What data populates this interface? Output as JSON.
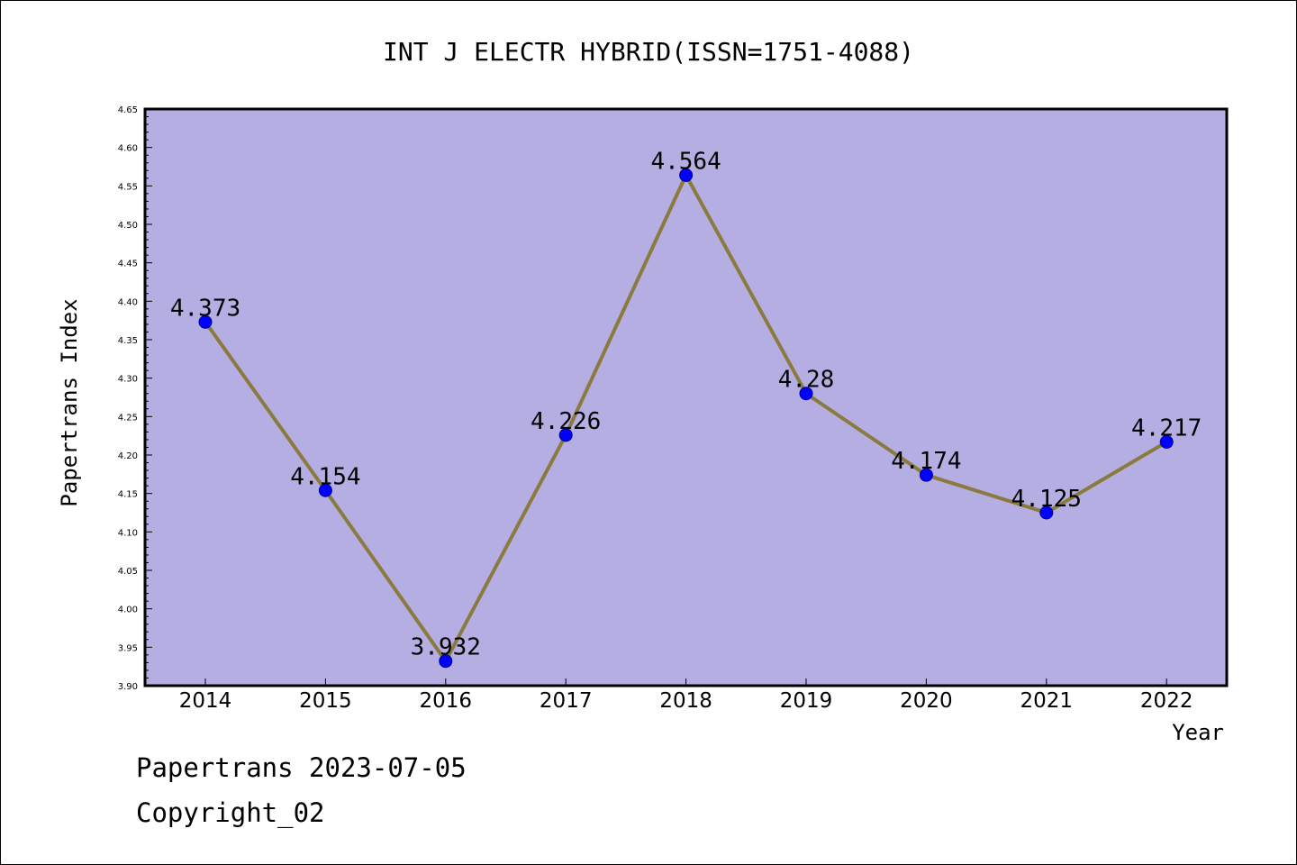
{
  "chart_data": {
    "type": "line",
    "title": "INT J ELECTR HYBRID(ISSN=1751-4088)",
    "xlabel": "Year",
    "ylabel": "Papertrans Index",
    "categories": [
      "2014",
      "2015",
      "2016",
      "2017",
      "2018",
      "2019",
      "2020",
      "2021",
      "2022"
    ],
    "series": [
      {
        "values": [
          4.373,
          4.154,
          3.932,
          4.226,
          4.564,
          4.28,
          4.174,
          4.125,
          4.217
        ],
        "labels": [
          "4.373",
          "4.154",
          "3.932",
          "4.226",
          "4.564",
          "4.28",
          "4.174",
          "4.125",
          "4.217"
        ]
      }
    ],
    "ylim": [
      3.9,
      4.65
    ],
    "yticks": [
      "3.90",
      "3.95",
      "4.00",
      "4.05",
      "4.10",
      "4.15",
      "4.20",
      "4.25",
      "4.30",
      "4.35",
      "4.40",
      "4.45",
      "4.50",
      "4.55",
      "4.60",
      "4.65"
    ],
    "grid": false,
    "legend": "none",
    "colors": {
      "plot_background": "#b4aee2",
      "line": "#8b7a3e",
      "marker": "#0000ff",
      "marker_edge": "#00008b"
    }
  },
  "footer": {
    "line1": "Papertrans 2023-07-05",
    "line2": "Copyright_02"
  }
}
